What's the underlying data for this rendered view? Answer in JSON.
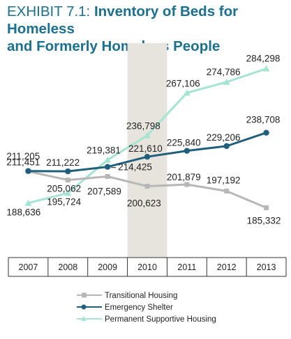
{
  "title": {
    "prefix": "EXHIBIT 7.1:",
    "line1": "Inventory of Beds for Homeless",
    "line2": "and Formerly Homeless People"
  },
  "chart_data": {
    "type": "line",
    "categories": [
      "2007",
      "2008",
      "2009",
      "2010",
      "2011",
      "2012",
      "2013"
    ],
    "highlighted_category": "2010",
    "ylim": [
      170000,
      300000
    ],
    "grid": false,
    "legend_position": "bottom",
    "series": [
      {
        "name": "Transitional Housing",
        "marker": "square",
        "color": "#b7b7b7",
        "values": [
          211205,
          205062,
          207589,
          200623,
          201879,
          197192,
          185332
        ],
        "labels": [
          "211,205",
          "205,062",
          "207,589",
          "200,623",
          "201,879",
          "197,192",
          "185,332"
        ]
      },
      {
        "name": "Emergency Shelter",
        "marker": "circle",
        "color": "#1f5e7c",
        "values": [
          211451,
          211222,
          214425,
          221610,
          225840,
          229206,
          238708
        ],
        "labels": [
          "211,451",
          "211,222",
          "214,425",
          "221,610",
          "225,840",
          "229,206",
          "238,708"
        ]
      },
      {
        "name": "Permanent Supportive Housing",
        "marker": "triangle",
        "color": "#a5e4d2",
        "values": [
          188636,
          195724,
          219381,
          236798,
          267106,
          274786,
          284298
        ],
        "labels": [
          "188,636",
          "195,724",
          "219,381",
          "236,798",
          "267,106",
          "274,786",
          "284,298"
        ]
      }
    ],
    "colors": {
      "highlight_band": "#e7e4dd",
      "title": "#1b6f8f"
    }
  }
}
